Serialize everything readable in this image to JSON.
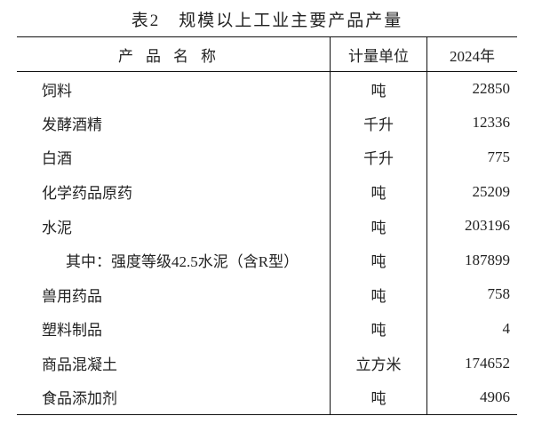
{
  "title": "表2　规模以上工业主要产品产量",
  "headers": [
    "产品名称",
    "计量单位",
    "2024年"
  ],
  "rows": [
    {
      "name": "饲料",
      "unit": "吨",
      "value": "22850",
      "indent": false
    },
    {
      "name": "发酵酒精",
      "unit": "千升",
      "value": "12336",
      "indent": false
    },
    {
      "name": "白酒",
      "unit": "千升",
      "value": "775",
      "indent": false
    },
    {
      "name": "化学药品原药",
      "unit": "吨",
      "value": "25209",
      "indent": false
    },
    {
      "name": "水泥",
      "unit": "吨",
      "value": "203196",
      "indent": false
    },
    {
      "name": "其中：强度等级42.5水泥（含R型）",
      "unit": "吨",
      "value": "187899",
      "indent": true
    },
    {
      "name": "兽用药品",
      "unit": "吨",
      "value": "758",
      "indent": false
    },
    {
      "name": "塑料制品",
      "unit": "吨",
      "value": "4",
      "indent": false
    },
    {
      "name": "商品混凝土",
      "unit": "立方米",
      "value": "174652",
      "indent": false
    },
    {
      "name": "食品添加剂",
      "unit": "吨",
      "value": "4906",
      "indent": false
    }
  ]
}
